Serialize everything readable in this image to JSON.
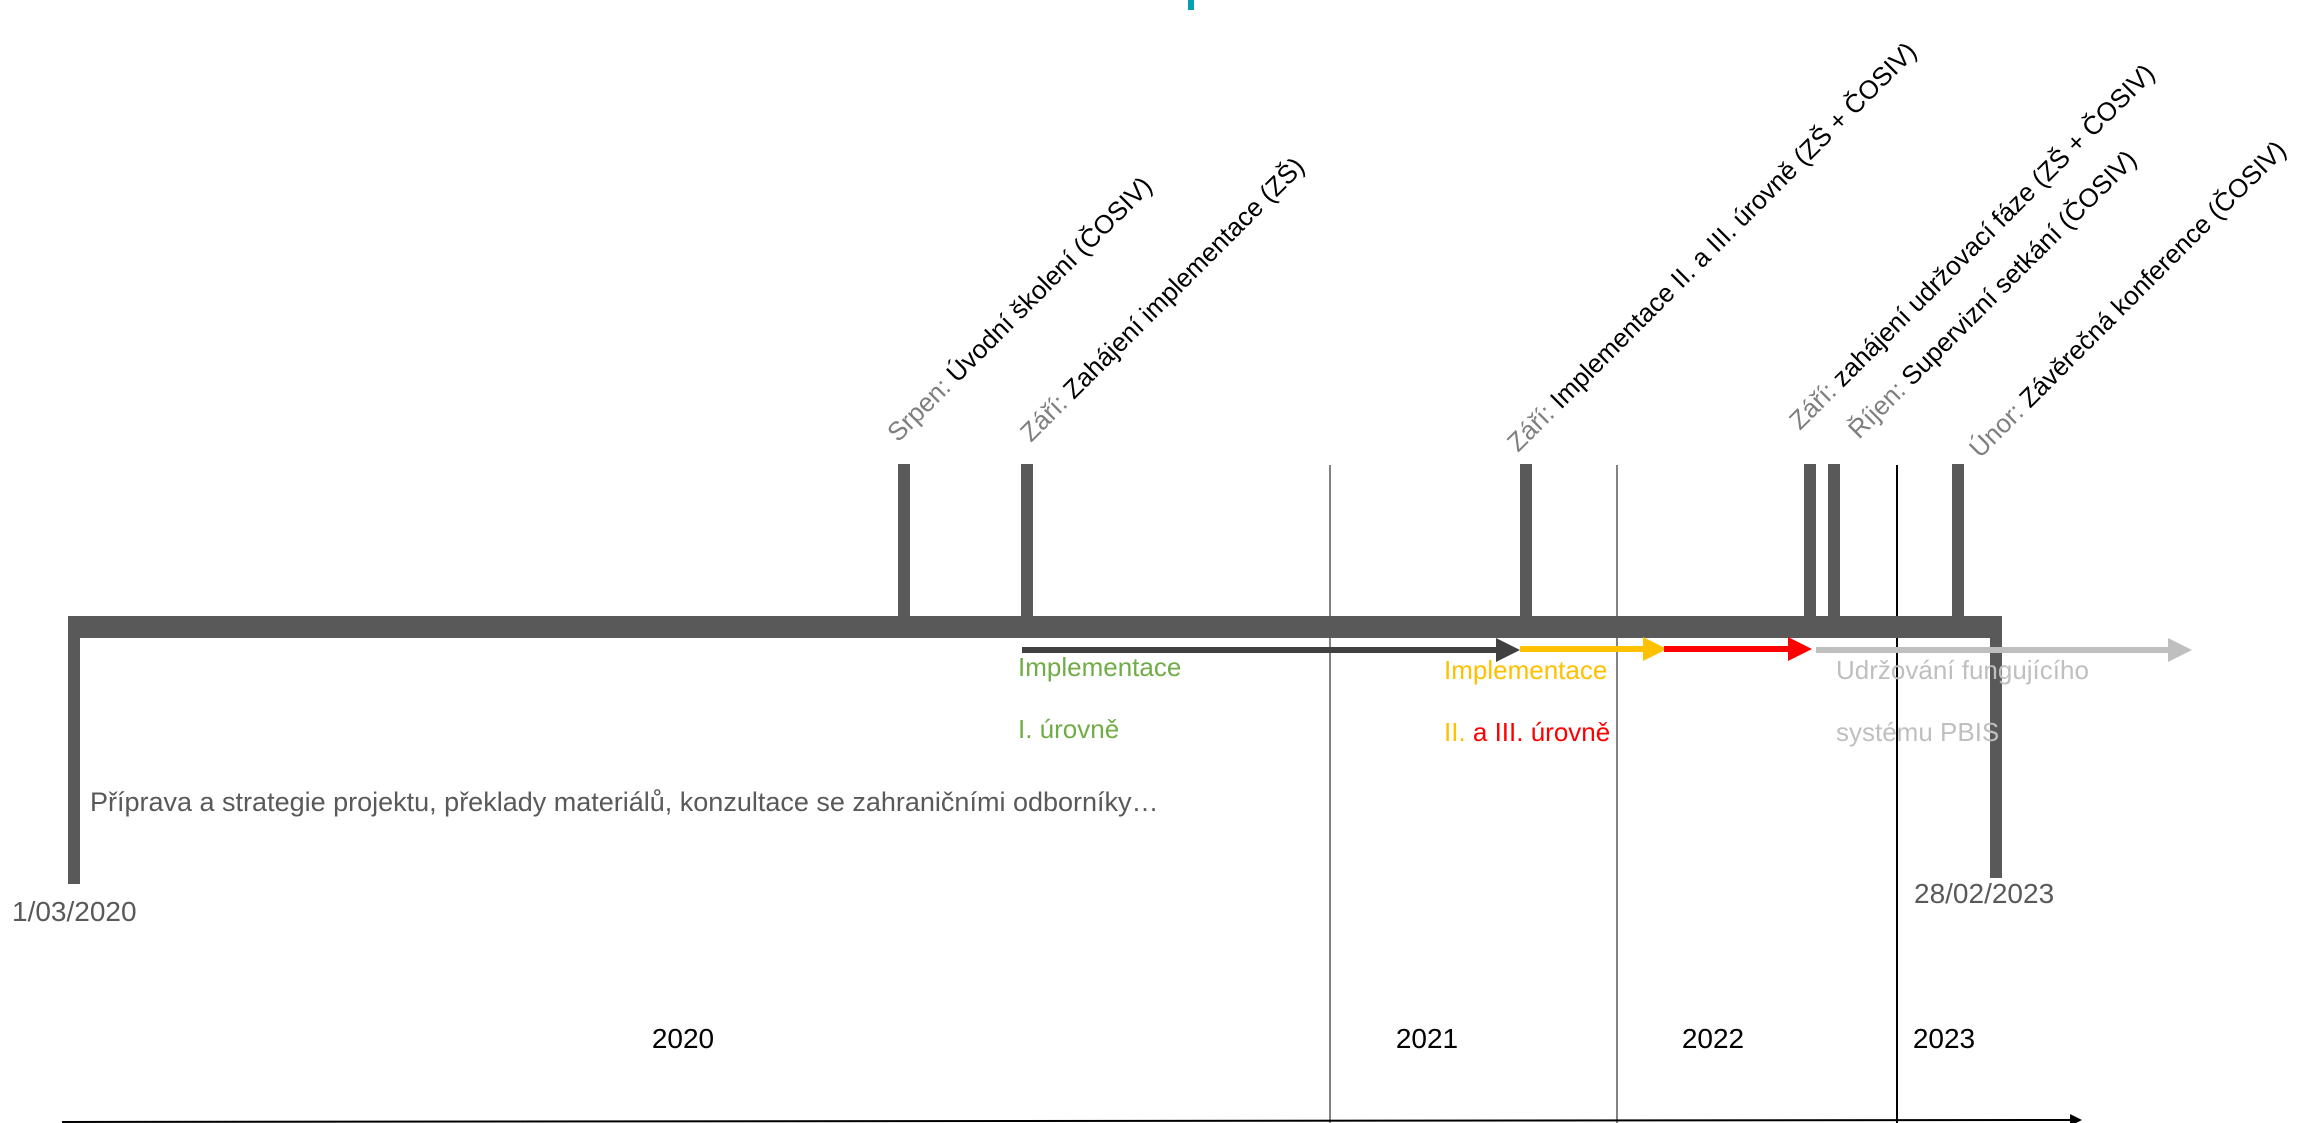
{
  "timeline": {
    "start_date": "1/03/2020",
    "end_date": "28/02/2023",
    "preparation_text": "Příprava a strategie projektu, překlady materiálů, konzultace se zahraničními odborníky…"
  },
  "milestones": [
    {
      "month": "Srpen:",
      "text": " Úvodní školení (ČOSIV)"
    },
    {
      "month": "Září:",
      "text": " Zahájení implementace (ZŠ)"
    },
    {
      "month": "Září:",
      "text": " Implementace II. a III. úrovně (ZŠ + ČOSIV)"
    },
    {
      "month": "Září:",
      "text": " zahájení udržovací fáze (ZŠ + ČOSIV)"
    },
    {
      "month": "Říjen:",
      "text": " Supervizní setkání (ČOSIV)"
    },
    {
      "month": "Únor:",
      "text": " Závěrečná konference (ČOSIV)"
    }
  ],
  "phases": {
    "level1": {
      "line1": "Implementace",
      "line2": "I. úrovně",
      "color": "#70ad47"
    },
    "level23": {
      "line1": "Implementace",
      "line2_part1": "II.",
      "line2_part2": " a III. úrovně",
      "color_yellow": "#ffc000",
      "color_red": "#ff0000"
    },
    "maintenance": {
      "line1": "Udržování fungujícího",
      "line2": "systému PBIS",
      "color": "#bfbfbf"
    }
  },
  "years": [
    "2020",
    "2021",
    "2022",
    "2023"
  ],
  "colors": {
    "bar": "#595959",
    "arrow_dark": "#404040",
    "arrow_yellow": "#ffc000",
    "arrow_red": "#ff0000",
    "arrow_grey": "#bfbfbf",
    "title_teal": "#00a0b0"
  }
}
